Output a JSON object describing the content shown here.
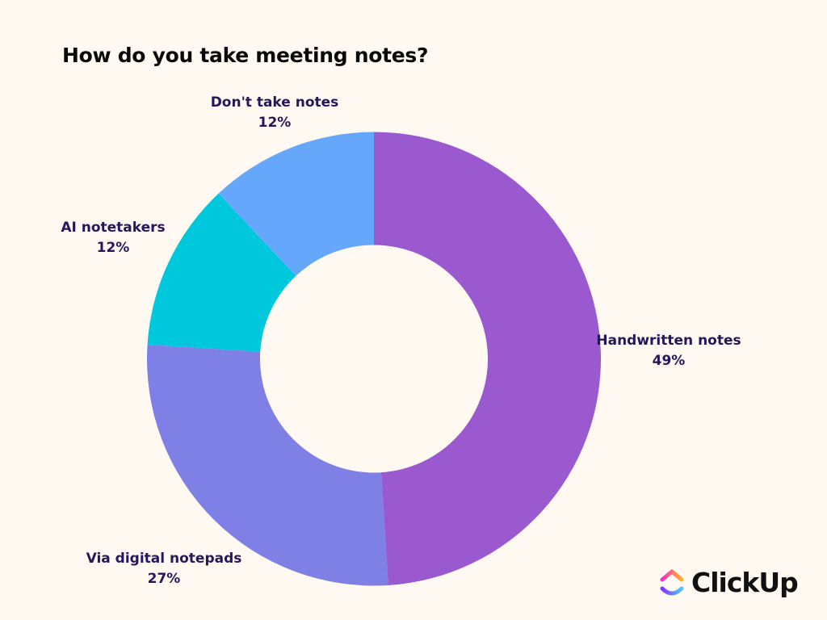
{
  "chart_data": {
    "type": "pie",
    "donut": true,
    "title": "How do you take meeting notes?",
    "categories": [
      "Handwritten notes",
      "Via digital notepads",
      "AI notetakers",
      "Don't take notes"
    ],
    "values": [
      49,
      27,
      12,
      12
    ],
    "value_labels": [
      "49%",
      "27%",
      "12%",
      "12%"
    ],
    "colors": [
      "#9b59cf",
      "#7f80e6",
      "#00c8dc",
      "#64a7fb"
    ],
    "start": "top, clockwise",
    "legend": "none (direct labels)"
  },
  "brand": {
    "name": "ClickUp"
  },
  "background": "#fff9f2"
}
